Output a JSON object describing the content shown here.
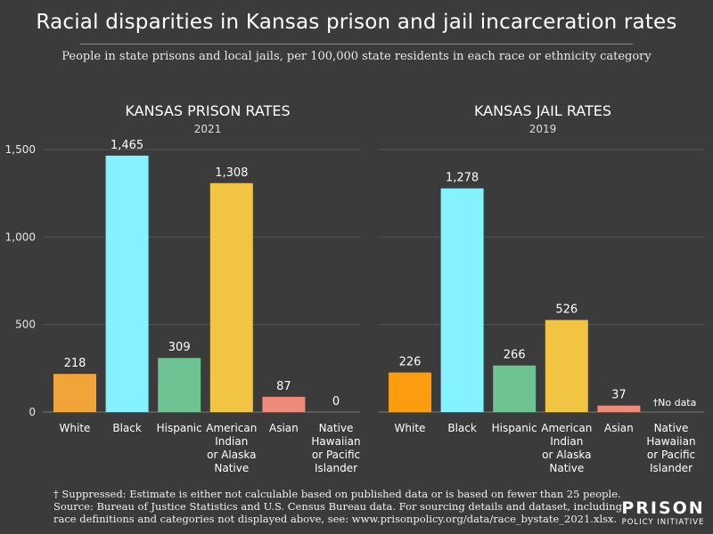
{
  "title": "Racial disparities in Kansas prison and jail incarceration rates",
  "subtitle": "People in state prisons and local jails, per 100,000 state residents in each race or ethnicity category",
  "footnote": {
    "line1": "† Suppressed: Estimate is either not calculable based on published data or is based on fewer than 25 people.",
    "line2": "Source: Bureau of Justice Statistics and U.S. Census Bureau data. For sourcing details and dataset, including",
    "line3": "race definitions and categories not displayed above, see: www.prisonpolicy.org/data/race_bystate_2021.xlsx."
  },
  "logo": {
    "main": "PRISON",
    "sub": "POLICY INITIATIVE"
  },
  "chart_data": [
    {
      "type": "bar",
      "title": "KANSAS PRISON RATES",
      "subtitle": "2021",
      "categories": [
        [
          "White"
        ],
        [
          "Black"
        ],
        [
          "Hispanic"
        ],
        [
          "American",
          "Indian",
          "or Alaska",
          "Native"
        ],
        [
          "Asian"
        ],
        [
          "Native",
          "Hawaiian",
          "or Pacific",
          "Islander"
        ]
      ],
      "values": [
        218,
        1465,
        309,
        1308,
        87,
        0
      ],
      "data_labels": [
        "218",
        "1,465",
        "309",
        "1,308",
        "87",
        "0"
      ],
      "colors": [
        "#f0a43a",
        "#84f3ff",
        "#6dc391",
        "#f1c443",
        "#ee8a78",
        "#e8a6a0"
      ],
      "ylim": [
        0,
        1500
      ],
      "yticks": [
        0,
        500,
        1000,
        1500
      ],
      "ytick_labels": [
        "0",
        "500",
        "1,000",
        "1,500"
      ],
      "grid": true
    },
    {
      "type": "bar",
      "title": "KANSAS JAIL RATES",
      "subtitle": "2019",
      "categories": [
        [
          "White"
        ],
        [
          "Black"
        ],
        [
          "Hispanic"
        ],
        [
          "American",
          "Indian",
          "or Alaska",
          "Native"
        ],
        [
          "Asian"
        ],
        [
          "Native",
          "Hawaiian",
          "or Pacific",
          "Islander"
        ]
      ],
      "values": [
        226,
        1278,
        266,
        526,
        37,
        null
      ],
      "data_labels": [
        "226",
        "1,278",
        "266",
        "526",
        "37",
        "†No data"
      ],
      "colors": [
        "#fb9d0e",
        "#84f3ff",
        "#6dc391",
        "#f1c443",
        "#ee8a78",
        "#e8a6a0"
      ],
      "ylim": [
        0,
        1500
      ],
      "grid": true
    }
  ]
}
